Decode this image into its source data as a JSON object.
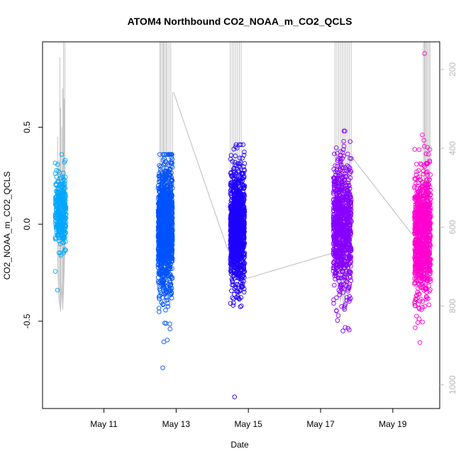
{
  "chart_data": {
    "type": "scatter",
    "title": "ATOM4 Northbound CO2_NOAA_m_CO2_QCLS",
    "xlabel": "Date",
    "ylabel": "CO2_NOAA_m_CO2_QCLS",
    "x_ticks": [
      "May 11",
      "May 13",
      "May 15",
      "May 17",
      "May 19"
    ],
    "x_tick_values": [
      11,
      13,
      15,
      17,
      19
    ],
    "xlim": [
      9.3,
      20.3
    ],
    "y_ticks": [
      "-0.5",
      "0.0",
      "0.5"
    ],
    "y_tick_values": [
      -0.5,
      0.0,
      0.5
    ],
    "ylim": [
      -0.95,
      0.94
    ],
    "right_axis": {
      "description": "secondary axis (pressure-like, inverted), drawn in light gray",
      "ticks": [
        "200",
        "400",
        "600",
        "800",
        "1000"
      ],
      "tick_values": [
        200,
        400,
        600,
        800,
        1000
      ],
      "ylim_inverted": [
        1060,
        130
      ],
      "color": "#bbbbbb"
    },
    "marker": "open-circle",
    "grid": false,
    "legend": "none",
    "series": [
      {
        "flight_day": 9.85,
        "x_range": [
          9.65,
          9.95
        ],
        "y_range": [
          -0.34,
          0.36
        ],
        "y_center": 0.07,
        "spread": 0.09,
        "color": "#00a7ff",
        "count": 320,
        "profile_line": {
          "x": [
            9.72,
            9.75,
            9.78,
            9.8,
            9.83,
            9.86,
            9.88,
            9.9,
            9.92
          ],
          "top": [
            0.45,
            0.33,
            0.86,
            0.6,
            0.5,
            0.7,
            0.94,
            0.65,
            0.94
          ],
          "bottom": [
            -0.2,
            -0.38,
            -0.42,
            -0.45,
            -0.3,
            -0.44,
            -0.35,
            -0.25,
            -0.1
          ]
        }
      },
      {
        "flight_day": 12.8,
        "x_range": [
          12.5,
          12.9
        ],
        "y_range": [
          -0.74,
          0.36
        ],
        "y_center": -0.03,
        "spread": 0.17,
        "color": "#0053ff",
        "count": 1100,
        "profile_line": {
          "x": [
            12.55,
            12.58,
            12.62,
            12.65,
            12.68,
            12.72,
            12.75,
            12.8,
            12.85,
            12.9
          ],
          "top": [
            0.94,
            0.94,
            0.94,
            0.94,
            0.94,
            0.94,
            0.94,
            0.94,
            0.94,
            0.68
          ],
          "bottom": [
            -0.1,
            -0.2,
            -0.3,
            -0.2,
            -0.1,
            -0.3,
            -0.2,
            -0.1,
            0.0,
            0.1
          ]
        }
      },
      {
        "flight_day": 14.8,
        "x_range": [
          14.5,
          14.9
        ],
        "y_range": [
          -0.89,
          0.41
        ],
        "y_center": -0.02,
        "spread": 0.15,
        "color": "#1f00ff",
        "count": 1100,
        "profile_line": {
          "x": [
            14.5,
            14.55,
            14.6,
            14.65,
            14.7,
            14.75,
            14.8
          ],
          "top": [
            0.94,
            0.94,
            0.94,
            0.94,
            0.94,
            0.94,
            0.94
          ],
          "bottom": [
            -0.1,
            -0.2,
            -0.15,
            -0.25,
            -0.1,
            -0.2,
            -0.27
          ]
        }
      },
      {
        "flight_day": 17.6,
        "x_range": [
          17.35,
          17.85
        ],
        "y_range": [
          -0.55,
          0.48
        ],
        "y_center": -0.02,
        "spread": 0.17,
        "color": "#8800ff",
        "count": 900,
        "profile_line": {
          "x": [
            17.4,
            17.45,
            17.5,
            17.55,
            17.6,
            17.65,
            17.7,
            17.75,
            17.8,
            17.85
          ],
          "top": [
            0.94,
            0.94,
            0.94,
            0.94,
            0.94,
            0.94,
            0.94,
            0.94,
            0.94,
            0.94
          ],
          "bottom": [
            -0.15,
            -0.3,
            -0.2,
            -0.4,
            -0.35,
            -0.45,
            -0.3,
            -0.25,
            -0.1,
            0.32
          ]
        }
      },
      {
        "flight_day": 19.7,
        "x_range": [
          19.6,
          20.05
        ],
        "y_range": [
          -0.61,
          0.88
        ],
        "y_center": -0.05,
        "spread": 0.16,
        "color": "#ff00d0",
        "count": 900,
        "profile_line": {
          "x": [
            19.85,
            19.88,
            19.9,
            19.93,
            19.96,
            20.0,
            20.03
          ],
          "top": [
            0.94,
            0.94,
            0.94,
            0.94,
            0.94,
            0.94,
            0.94
          ],
          "bottom": [
            0.2,
            0.1,
            0.15,
            0.0,
            0.1,
            0.2,
            0.25
          ]
        }
      }
    ],
    "connector_line": {
      "color": "#bbbbbb",
      "x": [
        12.93,
        14.52,
        14.95,
        17.3,
        17.85,
        19.65
      ],
      "y": [
        0.68,
        -0.18,
        -0.28,
        -0.15,
        0.35,
        -0.08
      ]
    }
  }
}
